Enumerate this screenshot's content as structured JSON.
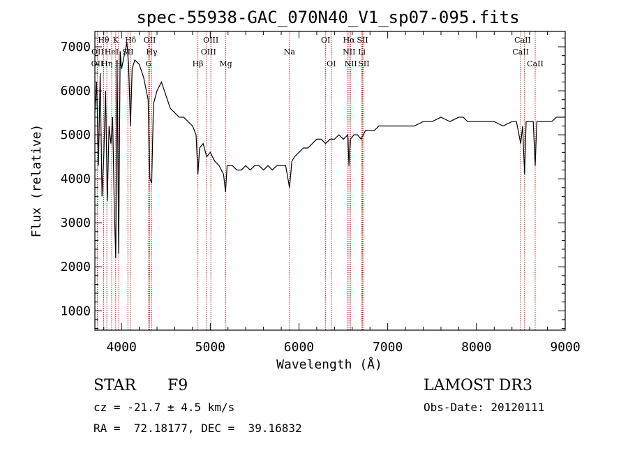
{
  "chart_data": {
    "type": "line",
    "title": "spec-55938-GAC_070N40_V1_sp07-095.fits",
    "xlabel": "Wavelength (Å)",
    "ylabel": "Flux (relative)",
    "xlim": [
      3700,
      9000
    ],
    "ylim": [
      560,
      7350
    ],
    "xticks": [
      4000,
      5000,
      6000,
      7000,
      8000,
      9000
    ],
    "yticks": [
      1000,
      2000,
      3000,
      4000,
      5000,
      6000,
      7000
    ],
    "series": [
      {
        "name": "flux",
        "x": [
          3700,
          3720,
          3740,
          3760,
          3780,
          3800,
          3820,
          3840,
          3860,
          3880,
          3900,
          3920,
          3935,
          3950,
          3968,
          3985,
          4000,
          4030,
          4060,
          4080,
          4101,
          4120,
          4150,
          4200,
          4250,
          4300,
          4320,
          4340,
          4360,
          4400,
          4450,
          4500,
          4550,
          4600,
          4650,
          4700,
          4750,
          4800,
          4840,
          4861,
          4880,
          4920,
          4960,
          5000,
          5050,
          5100,
          5150,
          5172,
          5190,
          5250,
          5300,
          5350,
          5400,
          5450,
          5500,
          5550,
          5600,
          5650,
          5700,
          5750,
          5800,
          5850,
          5893,
          5920,
          5950,
          6000,
          6050,
          6100,
          6150,
          6200,
          6250,
          6300,
          6350,
          6400,
          6450,
          6500,
          6550,
          6563,
          6580,
          6620,
          6660,
          6700,
          6750,
          6800,
          6850,
          6900,
          6950,
          7000,
          7100,
          7200,
          7300,
          7400,
          7500,
          7600,
          7700,
          7800,
          7850,
          7900,
          8000,
          8100,
          8200,
          8300,
          8400,
          8450,
          8498,
          8520,
          8542,
          8560,
          8600,
          8640,
          8662,
          8680,
          8700,
          8750,
          8800,
          8850,
          8900,
          8950,
          9000
        ],
        "values": [
          5500,
          6200,
          4300,
          6400,
          3600,
          4500,
          6000,
          3500,
          5200,
          4800,
          5400,
          3200,
          2200,
          6700,
          2300,
          6900,
          6500,
          6800,
          7100,
          6600,
          5200,
          6500,
          6700,
          6600,
          6300,
          5800,
          4000,
          3900,
          5700,
          6000,
          6200,
          5900,
          5600,
          5500,
          5400,
          5400,
          5300,
          5200,
          5000,
          4100,
          4700,
          4800,
          4500,
          4600,
          4400,
          4300,
          4100,
          3700,
          4300,
          4300,
          4200,
          4200,
          4300,
          4200,
          4300,
          4300,
          4200,
          4300,
          4200,
          4300,
          4300,
          4300,
          3800,
          4400,
          4500,
          4600,
          4700,
          4700,
          4800,
          4900,
          4900,
          4800,
          4900,
          4900,
          5000,
          4900,
          5000,
          4300,
          4900,
          5000,
          5000,
          4900,
          5100,
          5100,
          5100,
          5200,
          5200,
          5200,
          5200,
          5200,
          5200,
          5300,
          5300,
          5400,
          5300,
          5400,
          5400,
          5300,
          5300,
          5300,
          5300,
          5200,
          5300,
          5300,
          4800,
          5200,
          4100,
          5300,
          5300,
          5300,
          4300,
          5300,
          5300,
          5300,
          5300,
          5300,
          5400,
          5400,
          5400
        ]
      }
    ],
    "lines": [
      {
        "name": "OII",
        "wavelength": 3727
      },
      {
        "name": "Hθ",
        "wavelength": 3798
      },
      {
        "name": "Hη",
        "wavelength": 3835
      },
      {
        "name": "HeI",
        "wavelength": 3889
      },
      {
        "name": "K",
        "wavelength": 3934
      },
      {
        "name": "H",
        "wavelength": 3968
      },
      {
        "name": "Hδ",
        "wavelength": 4102
      },
      {
        "name": "SII",
        "wavelength": 4072
      },
      {
        "name": "OII",
        "wavelength": 4317
      },
      {
        "name": "Hγ",
        "wavelength": 4340
      },
      {
        "name": "G",
        "wavelength": 4304
      },
      {
        "name": "Hβ",
        "wavelength": 4861
      },
      {
        "name": "OIII",
        "wavelength": 4959
      },
      {
        "name": "OIII",
        "wavelength": 5007
      },
      {
        "name": "Mg",
        "wavelength": 5175
      },
      {
        "name": "Na",
        "wavelength": 5893
      },
      {
        "name": "OI",
        "wavelength": 6300
      },
      {
        "name": "OI",
        "wavelength": 6364
      },
      {
        "name": "NII",
        "wavelength": 6548
      },
      {
        "name": "Hα",
        "wavelength": 6563
      },
      {
        "name": "NII",
        "wavelength": 6583
      },
      {
        "name": "Li",
        "wavelength": 6708
      },
      {
        "name": "SII",
        "wavelength": 6716
      },
      {
        "name": "SII",
        "wavelength": 6731
      },
      {
        "name": "CaII",
        "wavelength": 8498
      },
      {
        "name": "CaII",
        "wavelength": 8542
      },
      {
        "name": "CaII",
        "wavelength": 8662
      }
    ]
  },
  "line_labels": {
    "row1": [
      "Hθ",
      "K",
      "Hδ",
      "OII",
      "OIII",
      "OI",
      "Hα",
      "SII",
      "CaII"
    ],
    "row2": [
      "OII",
      "HeI",
      "SII",
      "Hγ",
      "OIII",
      "Na",
      "NII",
      "Li",
      "CaII"
    ],
    "row3": [
      "OII",
      "Hη",
      "H",
      "G",
      "Hβ",
      "Mg",
      "OI",
      "NII",
      "SII",
      "CaII"
    ]
  },
  "info": {
    "class_label": "STAR",
    "subclass": "F9",
    "survey": "LAMOST DR3",
    "cz": "cz = -21.7 ± 4.5 km/s",
    "obs_date": "Obs-Date: 20120111",
    "coords": "RA =  72.18177, DEC =  39.16832"
  },
  "colors": {
    "line_marker": "#b22222",
    "spectrum": "#000000"
  }
}
